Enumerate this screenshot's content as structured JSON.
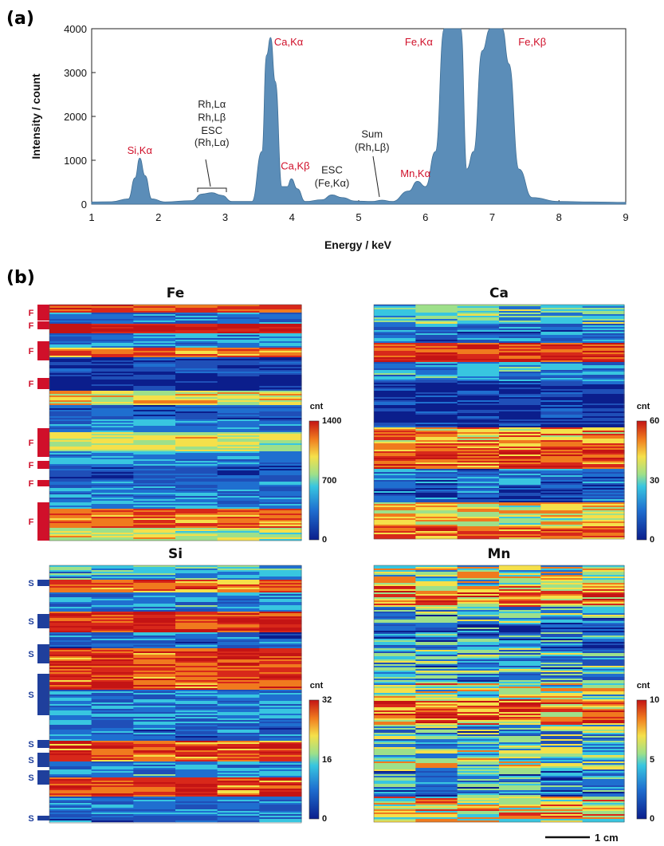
{
  "panel_a_label": "(a)",
  "panel_b_label": "(b)",
  "colors": {
    "spectrum_fill": "#5b8db8",
    "spectrum_stroke": "#3f6f96",
    "red_annotation": "#d0102a",
    "fe_marker": "#d0102a",
    "si_marker": "#1f3f9c"
  },
  "chart_data": [
    {
      "type": "area",
      "title": "",
      "xlabel": "Energy / keV",
      "ylabel": "Intensity / count",
      "xlim": [
        1,
        9
      ],
      "ylim": [
        0,
        4000
      ],
      "x_ticks": [
        "1",
        "2",
        "3",
        "4",
        "5",
        "6",
        "7",
        "8",
        "9"
      ],
      "y_ticks": [
        "0",
        "1000",
        "2000",
        "3000",
        "4000"
      ],
      "grid": false,
      "series": [
        {
          "x": [
            1.0,
            1.3,
            1.55,
            1.65,
            1.72,
            1.8,
            1.9,
            2.1,
            2.5,
            2.65,
            2.8,
            2.95,
            3.1,
            3.4,
            3.55,
            3.62,
            3.68,
            3.75,
            3.85,
            3.93,
            3.99,
            4.08,
            4.2,
            4.45,
            4.6,
            4.75,
            4.95,
            5.2,
            5.35,
            5.5,
            5.75,
            5.88,
            6.0,
            6.15,
            6.28,
            6.4,
            6.53,
            6.62,
            6.72,
            6.85,
            6.97,
            7.05,
            7.15,
            7.25,
            7.4,
            7.6,
            8.0,
            8.5,
            9.0
          ],
          "y": [
            50,
            55,
            120,
            600,
            1050,
            650,
            120,
            50,
            80,
            230,
            260,
            200,
            60,
            60,
            1200,
            3400,
            3800,
            2800,
            400,
            400,
            580,
            350,
            60,
            100,
            210,
            150,
            70,
            60,
            90,
            60,
            300,
            520,
            400,
            1200,
            4000,
            4000,
            4000,
            800,
            1200,
            3500,
            4000,
            4000,
            4000,
            3200,
            800,
            150,
            60,
            50,
            40
          ]
        }
      ],
      "annotations": [
        {
          "text": "Si,Kα",
          "color": "red",
          "x": 1.72,
          "y": 1150
        },
        {
          "text": "Rh,Lα",
          "color": "black",
          "x": 2.8,
          "y": 2200
        },
        {
          "text": "Rh,Lβ",
          "color": "black",
          "x": 2.8,
          "y": 1900
        },
        {
          "text": "ESC",
          "color": "black",
          "x": 2.8,
          "y": 1600
        },
        {
          "text": "(Rh,Lα)",
          "color": "black",
          "x": 2.8,
          "y": 1330
        },
        {
          "text": "Ca,Kα",
          "color": "red",
          "x": 3.95,
          "y": 3620
        },
        {
          "text": "Ca,Kβ",
          "color": "red",
          "x": 4.05,
          "y": 790
        },
        {
          "text": "ESC",
          "color": "black",
          "x": 4.6,
          "y": 700
        },
        {
          "text": "(Fe,Kα)",
          "color": "black",
          "x": 4.6,
          "y": 400
        },
        {
          "text": "Sum",
          "color": "black",
          "x": 5.2,
          "y": 1520
        },
        {
          "text": "(Rh,Lβ)",
          "color": "black",
          "x": 5.2,
          "y": 1220
        },
        {
          "text": "Mn,Kα",
          "color": "red",
          "x": 5.85,
          "y": 620
        },
        {
          "text": "Fe,Kα",
          "color": "red",
          "x": 5.9,
          "y": 3620
        },
        {
          "text": "Fe,Kβ",
          "color": "red",
          "x": 7.6,
          "y": 3620
        }
      ]
    },
    {
      "type": "heatmap",
      "title": "Fe",
      "colorbar_label": "cnt",
      "colorbar_ticks": [
        "1400",
        "700",
        "0"
      ],
      "range": [
        0,
        1400
      ],
      "layer_markers": {
        "letter": "F",
        "count": 8
      }
    },
    {
      "type": "heatmap",
      "title": "Ca",
      "colorbar_label": "cnt",
      "colorbar_ticks": [
        "60",
        "30",
        "0"
      ],
      "range": [
        0,
        60
      ]
    },
    {
      "type": "heatmap",
      "title": "Si",
      "colorbar_label": "cnt",
      "colorbar_ticks": [
        "32",
        "16",
        "0"
      ],
      "range": [
        0,
        32
      ],
      "layer_markers": {
        "letter": "S",
        "count": 8
      }
    },
    {
      "type": "heatmap",
      "title": "Mn",
      "colorbar_label": "cnt",
      "colorbar_ticks": [
        "10",
        "5",
        "0"
      ],
      "range": [
        0,
        10
      ]
    }
  ],
  "scale_bar": {
    "label": "1 cm"
  }
}
